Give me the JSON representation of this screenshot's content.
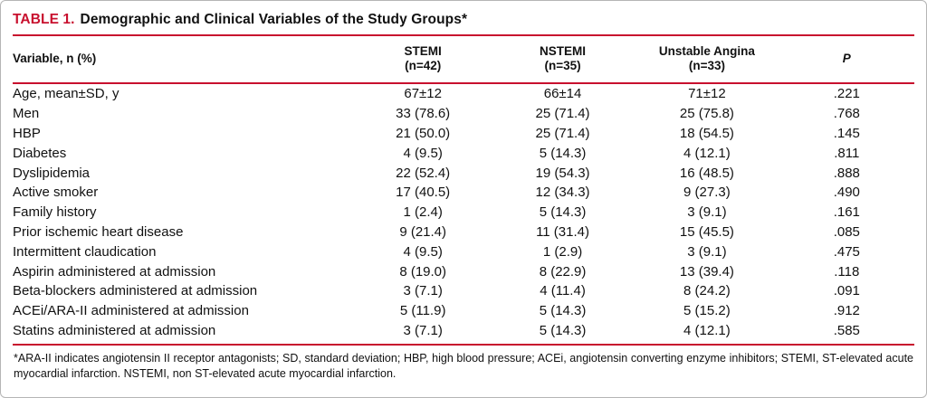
{
  "colors": {
    "accent_red": "#c8102e"
  },
  "table": {
    "title_label": "TABLE 1.",
    "title_text": "Demographic and Clinical Variables of the Study Groups*",
    "columns": {
      "variable": "Variable, n (%)",
      "stemi_name": "STEMI",
      "stemi_n": "(n=42)",
      "nstemi_name": "NSTEMI",
      "nstemi_n": "(n=35)",
      "ua_name": "Unstable Angina",
      "ua_n": "(n=33)",
      "p": "P"
    },
    "rows": [
      {
        "label": "Age, mean±SD, y",
        "stemi": "67±12",
        "nstemi": "66±14",
        "ua": "71±12",
        "p": ".221"
      },
      {
        "label": "Men",
        "stemi": "33 (78.6)",
        "nstemi": "25 (71.4)",
        "ua": "25 (75.8)",
        "p": ".768"
      },
      {
        "label": "HBP",
        "stemi": "21 (50.0)",
        "nstemi": "25 (71.4)",
        "ua": "18 (54.5)",
        "p": ".145"
      },
      {
        "label": "Diabetes",
        "stemi": "4 (9.5)",
        "nstemi": "5 (14.3)",
        "ua": "4 (12.1)",
        "p": ".811"
      },
      {
        "label": "Dyslipidemia",
        "stemi": "22 (52.4)",
        "nstemi": "19 (54.3)",
        "ua": "16 (48.5)",
        "p": ".888"
      },
      {
        "label": "Active smoker",
        "stemi": "17 (40.5)",
        "nstemi": "12 (34.3)",
        "ua": "9 (27.3)",
        "p": ".490"
      },
      {
        "label": "Family history",
        "stemi": "1 (2.4)",
        "nstemi": "5 (14.3)",
        "ua": "3 (9.1)",
        "p": ".161"
      },
      {
        "label": "Prior ischemic heart disease",
        "stemi": "9 (21.4)",
        "nstemi": "11 (31.4)",
        "ua": "15 (45.5)",
        "p": ".085"
      },
      {
        "label": "Intermittent claudication",
        "stemi": "4 (9.5)",
        "nstemi": "1 (2.9)",
        "ua": "3 (9.1)",
        "p": ".475"
      },
      {
        "label": "Aspirin administered at admission",
        "stemi": "8 (19.0)",
        "nstemi": "8 (22.9)",
        "ua": "13 (39.4)",
        "p": ".118"
      },
      {
        "label": "Beta-blockers administered at admission",
        "stemi": "3 (7.1)",
        "nstemi": "4 (11.4)",
        "ua": "8 (24.2)",
        "p": ".091"
      },
      {
        "label": "ACEi/ARA-II administered at admission",
        "stemi": "5 (11.9)",
        "nstemi": "5 (14.3)",
        "ua": "5 (15.2)",
        "p": ".912"
      },
      {
        "label": "Statins administered at admission",
        "stemi": "3 (7.1)",
        "nstemi": "5 (14.3)",
        "ua": "4 (12.1)",
        "p": ".585"
      }
    ],
    "footnote": "*ARA-II indicates angiotensin II receptor antagonists; SD, standard deviation; HBP, high blood pressure; ACEi, angiotensin converting enzyme inhibitors; STEMI, ST-elevated acute myocardial infarction. NSTEMI, non ST-elevated acute myocardial infarction."
  }
}
